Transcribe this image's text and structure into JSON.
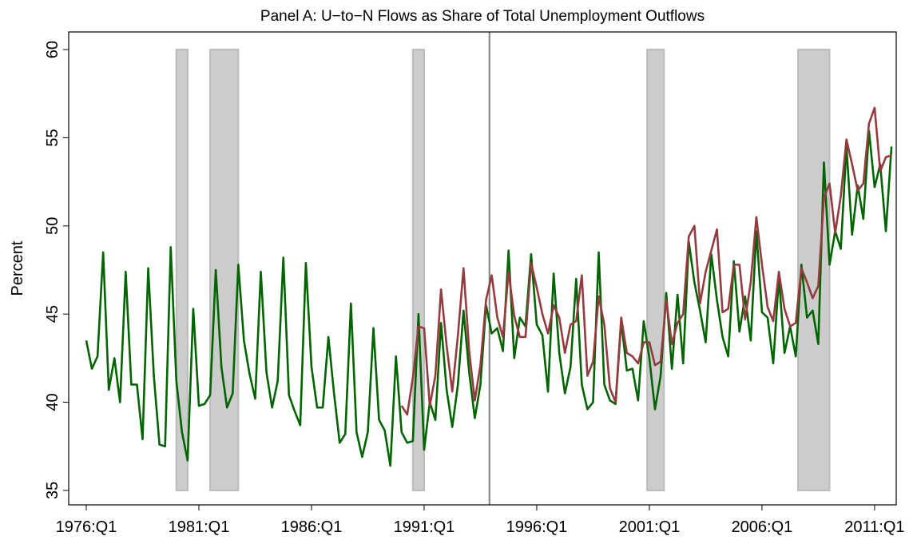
{
  "chart_data": {
    "type": "line",
    "title": "Panel A: U−to−N Flows as Share of Total Unemployment Outflows",
    "y_label": "Percent",
    "x": [
      1976,
      1976.25,
      1976.5,
      1976.75,
      1977,
      1977.25,
      1977.5,
      1977.75,
      1978,
      1978.25,
      1978.5,
      1978.75,
      1979,
      1979.25,
      1979.5,
      1979.75,
      1980,
      1980.25,
      1980.5,
      1980.75,
      1981,
      1981.25,
      1981.5,
      1981.75,
      1982,
      1982.25,
      1982.5,
      1982.75,
      1983,
      1983.25,
      1983.5,
      1983.75,
      1984,
      1984.25,
      1984.5,
      1984.75,
      1985,
      1985.25,
      1985.5,
      1985.75,
      1986,
      1986.25,
      1986.5,
      1986.75,
      1987,
      1987.25,
      1987.5,
      1987.75,
      1988,
      1988.25,
      1988.5,
      1988.75,
      1989,
      1989.25,
      1989.5,
      1989.75,
      1990,
      1990.25,
      1990.5,
      1990.75,
      1991,
      1991.25,
      1991.5,
      1991.75,
      1992,
      1992.25,
      1992.5,
      1992.75,
      1993,
      1993.25,
      1993.5,
      1993.75,
      1994,
      1994.25,
      1994.5,
      1994.75,
      1995,
      1995.25,
      1995.5,
      1995.75,
      1996,
      1996.25,
      1996.5,
      1996.75,
      1997,
      1997.25,
      1997.5,
      1997.75,
      1998,
      1998.25,
      1998.5,
      1998.75,
      1999,
      1999.25,
      1999.5,
      1999.75,
      2000,
      2000.25,
      2000.5,
      2000.75,
      2001,
      2001.25,
      2001.5,
      2001.75,
      2002,
      2002.25,
      2002.5,
      2002.75,
      2003,
      2003.25,
      2003.5,
      2003.75,
      2004,
      2004.25,
      2004.5,
      2004.75,
      2005,
      2005.25,
      2005.5,
      2005.75,
      2006,
      2006.25,
      2006.5,
      2006.75,
      2007,
      2007.25,
      2007.5,
      2007.75,
      2008,
      2008.25,
      2008.5,
      2008.75,
      2009,
      2009.25,
      2009.5,
      2009.75,
      2010,
      2010.25,
      2010.5,
      2010.75,
      2011,
      2011.25,
      2011.5,
      2011.75
    ],
    "series": [
      {
        "color": "#006400",
        "values": [
          43.5,
          41.9,
          42.6,
          48.5,
          40.7,
          42.5,
          40.0,
          47.4,
          41.0,
          41.0,
          37.9,
          47.6,
          41.5,
          37.6,
          37.5,
          48.8,
          41.2,
          38.3,
          36.7,
          45.3,
          39.8,
          39.9,
          40.4,
          47.5,
          42.0,
          39.7,
          40.5,
          47.8,
          43.5,
          41.6,
          40.2,
          47.4,
          41.7,
          39.7,
          41.2,
          48.2,
          40.4,
          39.5,
          38.7,
          47.9,
          42.0,
          39.7,
          39.7,
          43.7,
          40.5,
          37.7,
          38.2,
          45.6,
          38.3,
          36.9,
          38.3,
          44.2,
          39.0,
          38.4,
          36.4,
          42.6,
          38.3,
          37.7,
          37.8,
          45.0,
          37.3,
          40.0,
          39.0,
          44.5,
          40.7,
          38.6,
          41.0,
          45.2,
          41.7,
          39.1,
          41.0,
          45.5,
          43.9,
          44.2,
          42.9,
          48.6,
          42.5,
          44.8,
          44.3,
          48.4,
          44.4,
          43.8,
          40.6,
          47.3,
          42.8,
          40.5,
          42.0,
          47.0,
          41.0,
          39.6,
          40.0,
          48.5,
          41.0,
          40.1,
          39.9,
          44.6,
          41.8,
          41.9,
          40.1,
          44.6,
          42.5,
          39.6,
          41.5,
          46.2,
          41.9,
          46.1,
          42.2,
          49.1,
          46.8,
          45.2,
          43.4,
          48.4,
          45.8,
          43.7,
          42.6,
          48.0,
          44.0,
          46.0,
          43.5,
          49.7,
          45.1,
          44.8,
          42.2,
          47.1,
          42.8,
          44.3,
          42.6,
          47.8,
          44.8,
          45.2,
          43.3,
          53.6,
          47.8,
          49.7,
          48.7,
          54.5,
          49.5,
          52.3,
          50.4,
          55.4,
          52.2,
          53.5,
          49.7,
          54.5
        ]
      },
      {
        "color": "#953b3f",
        "values": [
          null,
          null,
          null,
          null,
          null,
          null,
          null,
          null,
          null,
          null,
          null,
          null,
          null,
          null,
          null,
          null,
          null,
          null,
          null,
          null,
          null,
          null,
          null,
          null,
          null,
          null,
          null,
          null,
          null,
          null,
          null,
          null,
          null,
          null,
          null,
          null,
          null,
          null,
          null,
          null,
          null,
          null,
          null,
          null,
          null,
          null,
          null,
          null,
          null,
          null,
          null,
          null,
          null,
          null,
          null,
          null,
          39.8,
          39.3,
          41.4,
          44.3,
          44.2,
          39.8,
          41.5,
          46.4,
          43.2,
          40.6,
          43.8,
          47.6,
          42.9,
          40.1,
          42.1,
          45.8,
          47.2,
          44.8,
          43.7,
          47.4,
          44.9,
          43.7,
          43.7,
          47.9,
          46.5,
          45.0,
          43.9,
          45.5,
          44.8,
          42.8,
          44.4,
          44.6,
          47.2,
          41.5,
          42.3,
          46.0,
          44.4,
          40.8,
          40.0,
          44.8,
          42.8,
          42.6,
          42.2,
          43.4,
          43.4,
          42.1,
          42.3,
          45.8,
          43.3,
          44.5,
          45.0,
          49.4,
          50.0,
          45.6,
          47.4,
          48.6,
          49.8,
          45.1,
          45.3,
          47.8,
          47.8,
          44.7,
          46.8,
          50.5,
          47.8,
          45.4,
          44.6,
          47.4,
          45.3,
          44.3,
          44.5,
          47.6,
          46.8,
          45.9,
          46.6,
          51.6,
          52.4,
          49.6,
          51.7,
          54.9,
          53.5,
          52.0,
          52.4,
          55.8,
          56.7,
          53.1,
          53.9,
          54.0
        ]
      }
    ],
    "shaded_periods": [
      [
        1980.0,
        1980.5
      ],
      [
        1981.5,
        1982.75
      ],
      [
        1990.5,
        1991.0
      ],
      [
        2000.9,
        2001.65
      ],
      [
        2007.6,
        2009.0
      ]
    ],
    "shaded_range": [
      35,
      60
    ],
    "shade_color": "#cccccc",
    "vline": 1993.9,
    "vline_color": "#808080",
    "xlim": [
      1975.22,
      2011.96
    ],
    "ylim": [
      34.18,
      61.0
    ],
    "xticks": [
      {
        "value": 1976,
        "label": "1976:Q1"
      },
      {
        "value": 1981,
        "label": "1981:Q1"
      },
      {
        "value": 1986,
        "label": "1986:Q1"
      },
      {
        "value": 1991,
        "label": "1991:Q1"
      },
      {
        "value": 1996,
        "label": "1996:Q1"
      },
      {
        "value": 2001,
        "label": "2001:Q1"
      },
      {
        "value": 2006,
        "label": "2006:Q1"
      },
      {
        "value": 2011,
        "label": "2011:Q1"
      }
    ],
    "yticks": [
      35,
      40,
      45,
      50,
      55,
      60
    ]
  }
}
